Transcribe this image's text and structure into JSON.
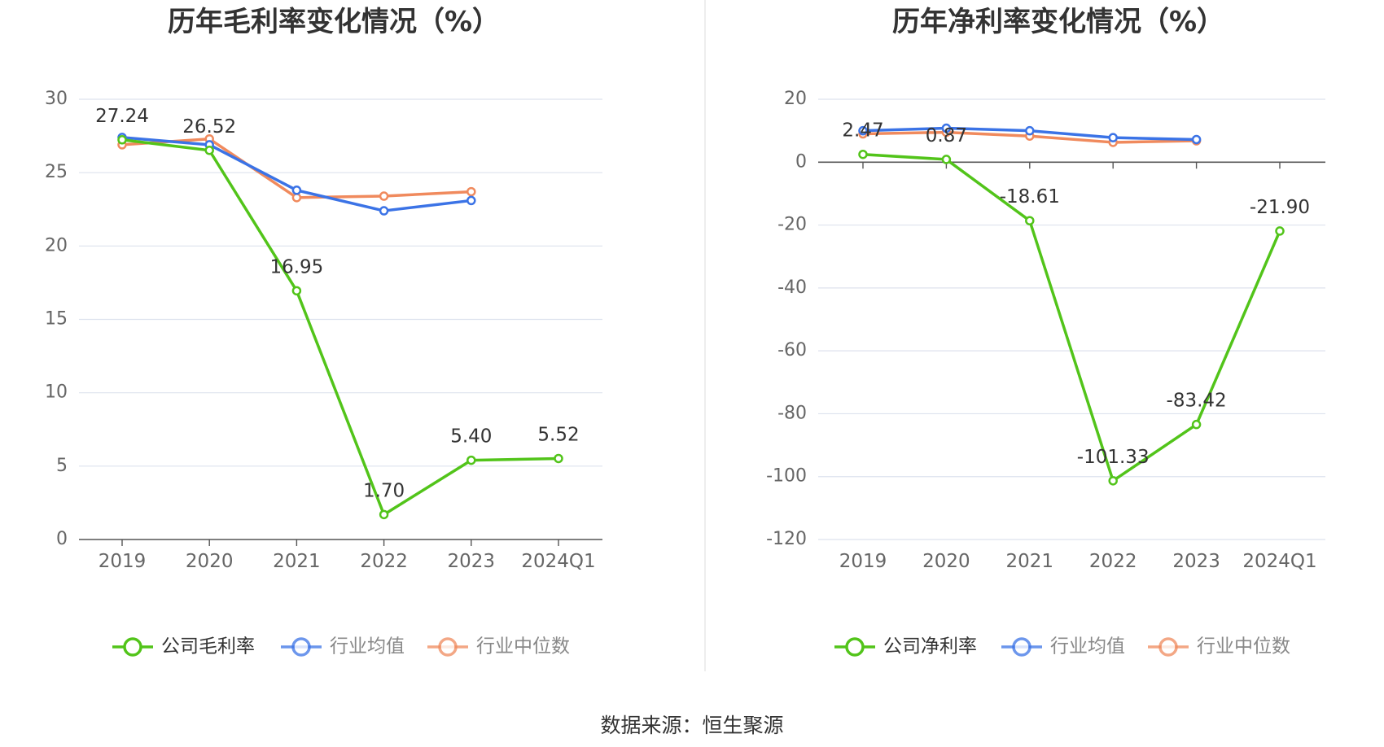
{
  "source_label": "数据来源：恒生聚源",
  "colors": {
    "company": "#52c41a",
    "avg": "#3b73e6",
    "median": "#f08a5d"
  },
  "chart_data": [
    {
      "type": "line",
      "title": "历年毛利率变化情况（%）",
      "categories": [
        "2019",
        "2020",
        "2021",
        "2022",
        "2023",
        "2024Q1"
      ],
      "ylim": [
        0,
        30
      ],
      "yticks": [
        0,
        5,
        10,
        15,
        20,
        25,
        30
      ],
      "series": [
        {
          "name": "公司毛利率",
          "key": "company",
          "values": [
            27.24,
            26.52,
            16.95,
            1.7,
            5.4,
            5.52
          ],
          "labels": [
            "27.24",
            "26.52",
            "16.95",
            "1.70",
            "5.40",
            "5.52"
          ]
        },
        {
          "name": "行业均值",
          "key": "avg",
          "values": [
            27.4,
            26.9,
            23.8,
            22.4,
            23.1,
            null
          ]
        },
        {
          "name": "行业中位数",
          "key": "median",
          "values": [
            26.9,
            27.3,
            23.3,
            23.4,
            23.7,
            null
          ]
        }
      ]
    },
    {
      "type": "line",
      "title": "历年净利率变化情况（%）",
      "categories": [
        "2019",
        "2020",
        "2021",
        "2022",
        "2023",
        "2024Q1"
      ],
      "ylim": [
        -120,
        20
      ],
      "yticks": [
        -120,
        -100,
        -80,
        -60,
        -40,
        -20,
        0,
        20
      ],
      "series": [
        {
          "name": "公司净利率",
          "key": "company",
          "values": [
            2.47,
            0.87,
            -18.61,
            -101.33,
            -83.42,
            -21.9
          ],
          "labels": [
            "2.47",
            "0.87",
            "-18.61",
            "-101.33",
            "-83.42",
            "-21.90"
          ]
        },
        {
          "name": "行业均值",
          "key": "avg",
          "values": [
            10.0,
            10.8,
            10.0,
            7.8,
            7.2,
            null
          ]
        },
        {
          "name": "行业中位数",
          "key": "median",
          "values": [
            9.0,
            9.5,
            8.3,
            6.3,
            6.8,
            null
          ]
        }
      ]
    }
  ]
}
